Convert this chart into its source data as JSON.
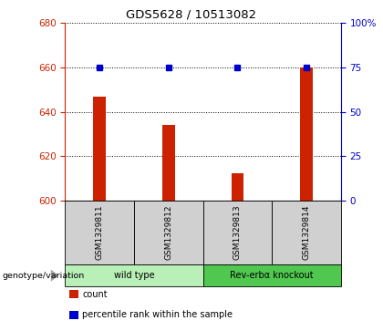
{
  "title": "GDS5628 / 10513082",
  "samples": [
    "GSM1329811",
    "GSM1329812",
    "GSM1329813",
    "GSM1329814"
  ],
  "counts": [
    647,
    634,
    612,
    660
  ],
  "percentile_ranks": [
    75,
    75,
    75,
    75
  ],
  "ylim_left": [
    600,
    680
  ],
  "ylim_right": [
    0,
    100
  ],
  "yticks_left": [
    600,
    620,
    640,
    660,
    680
  ],
  "yticks_right": [
    0,
    25,
    50,
    75,
    100
  ],
  "yticklabels_right": [
    "0",
    "25",
    "50",
    "75",
    "100%"
  ],
  "bar_color": "#cc2200",
  "dot_color": "#0000cc",
  "groups": [
    {
      "label": "wild type",
      "samples": [
        0,
        1
      ],
      "color": "#b8f0b8"
    },
    {
      "label": "Rev-erbα knockout",
      "samples": [
        2,
        3
      ],
      "color": "#50c850"
    }
  ],
  "xlabel_left": "genotype/variation",
  "legend_items": [
    {
      "color": "#cc2200",
      "label": "count"
    },
    {
      "color": "#0000cc",
      "label": "percentile rank within the sample"
    }
  ],
  "background_color": "#ffffff",
  "plot_bg_color": "#ffffff",
  "grid_color": "#000000",
  "sample_box_color": "#d0d0d0",
  "bar_width": 0.18
}
